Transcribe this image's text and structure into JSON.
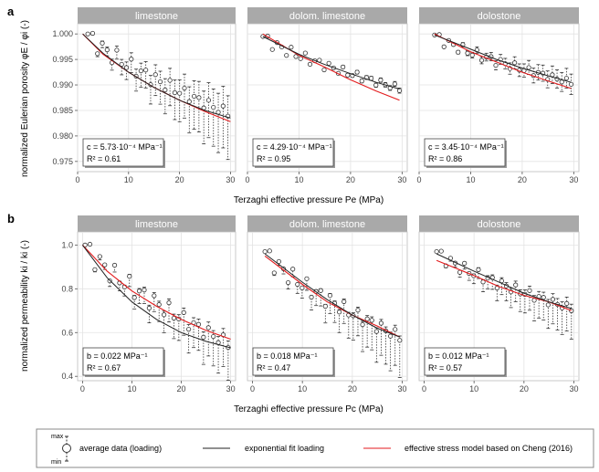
{
  "figure": {
    "panel_a_letter": "a",
    "panel_b_letter": "b",
    "colors": {
      "strip": "#a9a9a9",
      "grid": "#e3e3e3",
      "panel_border": "#bdbdbd",
      "data": "#333333",
      "fit": "#222222",
      "model": "#e31a1c"
    }
  },
  "legend": {
    "max_label": "max",
    "min_label": "min",
    "data_label": "average data (loading)",
    "fit_label": "exponential fit loading",
    "model_label": "effective stress model based on Cheng (2016)"
  },
  "chart_data": [
    {
      "type": "scatter",
      "id": "a",
      "ylabel": "normalized Eulerian porosity φE / φi (-)",
      "xlabel": "Terzaghi effective pressure  Pe (MPa)",
      "xlim": [
        0,
        31
      ],
      "ylim": [
        0.973,
        1.002
      ],
      "xticks": [
        0,
        10,
        20,
        30
      ],
      "yticks": [
        0.975,
        0.98,
        0.985,
        0.99,
        0.995,
        1.0
      ],
      "ytick_labels": [
        "0.975",
        "0.980",
        "0.985",
        "0.990",
        "0.995",
        "1.000"
      ],
      "grid": true,
      "facets": [
        {
          "name": "limestone",
          "c_text": "c  = 5.73·10⁻⁴ MPa⁻¹",
          "r2_text": "R² = 0.61",
          "x_start": 2,
          "x_end": 29.5,
          "mean_start": 1.0,
          "mean_end": 0.9845,
          "min_end": 0.976,
          "max_end": 0.9885,
          "fit": [
            [
              1,
              1.0
            ],
            [
              5,
              0.9962
            ],
            [
              10,
              0.9925
            ],
            [
              15,
              0.9895
            ],
            [
              20,
              0.987
            ],
            [
              25,
              0.985
            ],
            [
              30,
              0.9835
            ]
          ],
          "model": [
            [
              1,
              1.0
            ],
            [
              5,
              0.996
            ],
            [
              10,
              0.9925
            ],
            [
              15,
              0.9895
            ],
            [
              20,
              0.987
            ],
            [
              25,
              0.9848
            ],
            [
              30,
              0.9828
            ]
          ]
        },
        {
          "name": "dolom. limestone",
          "c_text": "c  = 4.29·10⁻⁴ MPa⁻¹",
          "r2_text": "R² = 0.95",
          "x_start": 3,
          "x_end": 29.5,
          "mean_start": 0.9995,
          "mean_end": 0.9893,
          "min_end": 0.9888,
          "max_end": 0.9898,
          "fit": [
            [
              3,
              0.9995
            ],
            [
              10,
              0.996
            ],
            [
              15,
              0.994
            ],
            [
              20,
              0.9922
            ],
            [
              25,
              0.9905
            ],
            [
              29.5,
              0.9892
            ]
          ],
          "model": [
            [
              3,
              1.0
            ],
            [
              10,
              0.9958
            ],
            [
              15,
              0.9935
            ],
            [
              20,
              0.991
            ],
            [
              25,
              0.9888
            ],
            [
              29.5,
              0.987
            ]
          ]
        },
        {
          "name": "dolostone",
          "c_text": "c  = 3.45·10⁻⁴ MPa⁻¹",
          "r2_text": "R² = 0.86",
          "x_start": 3,
          "x_end": 29.5,
          "mean_start": 0.9998,
          "mean_end": 0.9905,
          "min_end": 0.9885,
          "max_end": 0.9925,
          "fit": [
            [
              3,
              0.9998
            ],
            [
              10,
              0.997
            ],
            [
              15,
              0.995
            ],
            [
              20,
              0.9933
            ],
            [
              25,
              0.9918
            ],
            [
              29.5,
              0.9905
            ]
          ],
          "model": [
            [
              3,
              1.0
            ],
            [
              10,
              0.9965
            ],
            [
              15,
              0.9945
            ],
            [
              20,
              0.9925
            ],
            [
              25,
              0.9908
            ],
            [
              29.5,
              0.9893
            ]
          ]
        }
      ]
    },
    {
      "type": "scatter",
      "id": "b",
      "ylabel": "normalized permeability ki / ki (-)",
      "xlabel": "Terzaghi effective pressure  Pc (MPa)",
      "xlim": [
        -1,
        31
      ],
      "ylim": [
        0.38,
        1.06
      ],
      "xticks": [
        0,
        10,
        20,
        30
      ],
      "yticks": [
        0.4,
        0.6,
        0.8,
        1.0
      ],
      "ytick_labels": [
        "0.4",
        "0.6",
        "0.8",
        "1.0"
      ],
      "grid": true,
      "facets": [
        {
          "name": "limestone",
          "c_text": "b  = 0.022 MPa⁻¹",
          "r2_text": "R² = 0.67",
          "x_start": 0.5,
          "x_end": 29.5,
          "mean_start": 1.0,
          "mean_end": 0.55,
          "min_end": 0.4,
          "max_end": 0.58,
          "fit": [
            [
              0,
              1.0
            ],
            [
              5,
              0.85
            ],
            [
              10,
              0.74
            ],
            [
              15,
              0.66
            ],
            [
              20,
              0.6
            ],
            [
              25,
              0.56
            ],
            [
              30,
              0.53
            ]
          ],
          "model": [
            [
              0,
              1.0
            ],
            [
              5,
              0.88
            ],
            [
              10,
              0.79
            ],
            [
              15,
              0.72
            ],
            [
              20,
              0.66
            ],
            [
              25,
              0.61
            ],
            [
              30,
              0.57
            ]
          ]
        },
        {
          "name": "dolom. limestone",
          "c_text": "b  = 0.018 MPa⁻¹",
          "r2_text": "R² = 0.47",
          "x_start": 2.5,
          "x_end": 29.5,
          "mean_start": 0.97,
          "mean_end": 0.58,
          "min_end": 0.41,
          "max_end": 0.6,
          "fit": [
            [
              2.5,
              0.96
            ],
            [
              10,
              0.83
            ],
            [
              15,
              0.75
            ],
            [
              20,
              0.68
            ],
            [
              25,
              0.62
            ],
            [
              29.5,
              0.58
            ]
          ],
          "model": [
            [
              2.5,
              0.95
            ],
            [
              10,
              0.82
            ],
            [
              15,
              0.74
            ],
            [
              20,
              0.68
            ],
            [
              25,
              0.63
            ],
            [
              29.5,
              0.58
            ]
          ]
        },
        {
          "name": "dolostone",
          "c_text": "b  = 0.012 MPa⁻¹",
          "r2_text": "R² = 0.57",
          "x_start": 2.5,
          "x_end": 29.5,
          "mean_start": 0.97,
          "mean_end": 0.71,
          "min_end": 0.58,
          "max_end": 0.74,
          "fit": [
            [
              2.5,
              0.96
            ],
            [
              10,
              0.88
            ],
            [
              15,
              0.83
            ],
            [
              20,
              0.78
            ],
            [
              25,
              0.74
            ],
            [
              29.5,
              0.71
            ]
          ],
          "model": [
            [
              2.5,
              0.93
            ],
            [
              10,
              0.86
            ],
            [
              15,
              0.81
            ],
            [
              20,
              0.77
            ],
            [
              25,
              0.74
            ],
            [
              29.5,
              0.7
            ]
          ]
        }
      ]
    }
  ]
}
